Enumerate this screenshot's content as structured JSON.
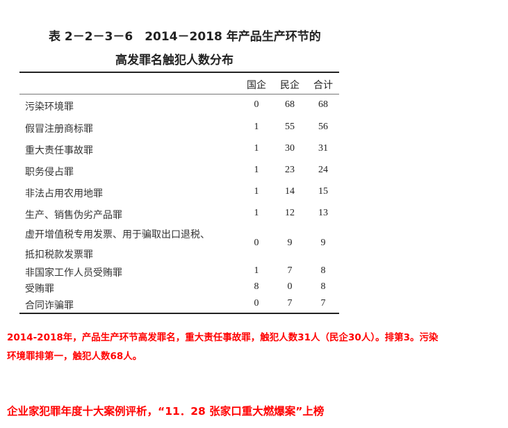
{
  "table": {
    "title_line1": "表 2－2－3－6　2014－2018 年产品生产环节的",
    "title_line2": "高发罪名触犯人数分布",
    "columns": [
      "国企",
      "民企",
      "合计"
    ],
    "rows": [
      {
        "label": "污染环境罪",
        "values": [
          "0",
          "68",
          "68"
        ]
      },
      {
        "label": "假冒注册商标罪",
        "values": [
          "1",
          "55",
          "56"
        ]
      },
      {
        "label": "重大责任事故罪",
        "values": [
          "1",
          "30",
          "31"
        ]
      },
      {
        "label": "职务侵占罪",
        "values": [
          "1",
          "23",
          "24"
        ]
      },
      {
        "label": "非法占用农用地罪",
        "values": [
          "1",
          "14",
          "15"
        ]
      },
      {
        "label": "生产、销售伪劣产品罪",
        "values": [
          "1",
          "12",
          "13"
        ]
      },
      {
        "label": "虚开增值税专用发票、用于骗取出口退税、",
        "label2": "抵扣税款发票罪",
        "values": [
          "0",
          "9",
          "9"
        ]
      },
      {
        "label": "非国家工作人员受贿罪",
        "values": [
          "1",
          "7",
          "8"
        ]
      },
      {
        "label": "受贿罪",
        "values": [
          "8",
          "0",
          "8"
        ]
      },
      {
        "label": "合同诈骗罪",
        "values": [
          "0",
          "7",
          "7"
        ]
      }
    ]
  },
  "note": {
    "line1": "2014-2018年，产品生产环节高发罪名，重大责任事故罪，触犯人数31人（民企30人）。排第3。污染",
    "line2": "环境罪排第一，触犯人数68人。"
  },
  "headline": "企业家犯罪年度十大案例评析，“11．28 张家口重大燃爆案”上榜",
  "colors": {
    "accent": "#ff0000",
    "text": "#222222"
  }
}
